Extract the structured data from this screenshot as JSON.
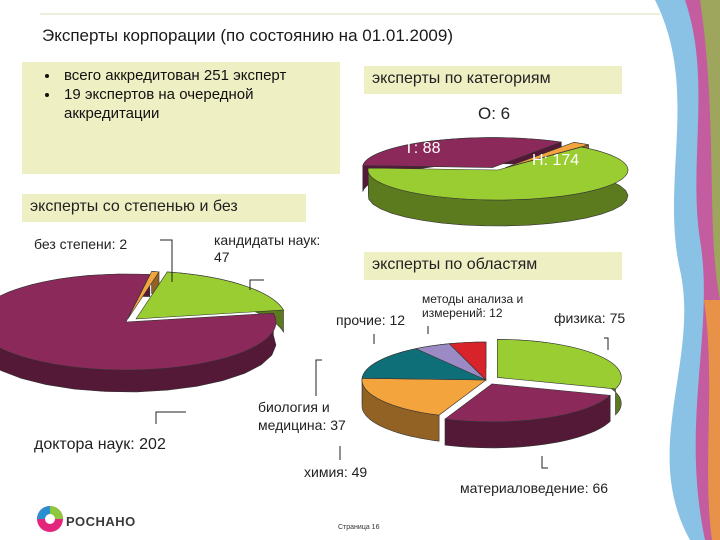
{
  "title": "Эксперты корпорации (по состоянию на 01.01.2009)",
  "bullets": [
    "всего аккредитован 251 эксперт",
    "19 экспертов на очередной аккредитации"
  ],
  "footer": {
    "page": "Страница 16",
    "logo": "РОСНАНО"
  },
  "colors": {
    "crimson": "#8b2a5a",
    "green": "#9acd32",
    "orange": "#f4a43c",
    "teal": "#0f6f78",
    "lavender": "#9b8ac4",
    "red": "#d8232a",
    "panel": "#efefc4"
  },
  "chart_data": [
    {
      "type": "pie",
      "title": "эксперты по категориям",
      "slices": [
        {
          "label": "Н: 174",
          "value": 174,
          "color": "#9acd32"
        },
        {
          "label": "Т: 88",
          "value": 88,
          "color": "#8b2a5a"
        },
        {
          "label": "О: 6",
          "value": 6,
          "color": "#f4a43c"
        }
      ]
    },
    {
      "type": "pie",
      "title": "эксперты со степенью и без",
      "slices": [
        {
          "label": "кандидаты наук: 47",
          "value": 47,
          "color": "#9acd32"
        },
        {
          "label": "доктора наук: 202",
          "value": 202,
          "color": "#8b2a5a"
        },
        {
          "label": "без степени: 2",
          "value": 2,
          "color": "#f4a43c"
        }
      ]
    },
    {
      "type": "pie",
      "title": "эксперты по областям",
      "slices": [
        {
          "label": "физика: 75",
          "value": 75,
          "color": "#9acd32"
        },
        {
          "label": "материаловедение: 66",
          "value": 66,
          "color": "#8b2a5a"
        },
        {
          "label": "химия: 49",
          "value": 49,
          "color": "#f4a43c"
        },
        {
          "label": "биология и медицина: 37",
          "value": 37,
          "color": "#0f6f78"
        },
        {
          "label": "прочие: 12",
          "value": 12,
          "color": "#9b8ac4"
        },
        {
          "label": "методы анализа и измерений: 12",
          "value": 12,
          "color": "#d8232a"
        }
      ]
    }
  ]
}
